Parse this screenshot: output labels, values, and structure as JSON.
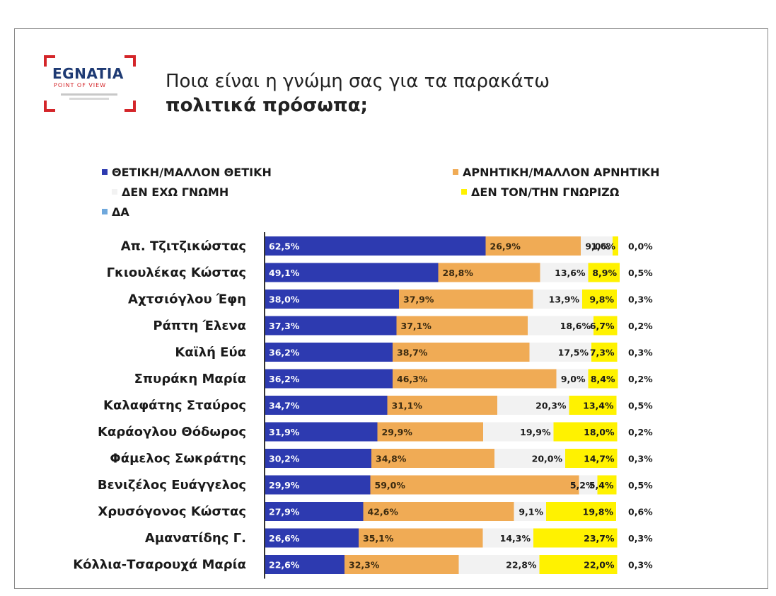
{
  "title_line1": "Ποια είναι η γνώμη σας για τα παρακάτω",
  "title_line2": "πολιτικά πρόσωπα;",
  "logo": {
    "word": "EGNATIA",
    "sub": "POINT OF VIEW"
  },
  "colors": {
    "positive": "#2d3ab0",
    "negative": "#f0ab55",
    "no_opinion": "#f2f2f2",
    "dont_know": "#fff200",
    "na": "#6fa8dc"
  },
  "chart_data": {
    "type": "bar",
    "orientation": "horizontal-stacked",
    "categories": [
      "Απ. Τζιτζικώστας",
      "Γκιουλέκας Κώστας",
      "Αχτσιόγλου Έφη",
      "Ράπτη Έλενα",
      "Καϊλή Εύα",
      "Σπυράκη Μαρία",
      "Καλαφάτης Σταύρος",
      "Καράογλου Θόδωρος",
      "Φάμελος Σωκράτης",
      "Βενιζέλος Ευάγγελος",
      "Χρυσόγονος Κώστας",
      "Αμανατίδης Γ.",
      "Κόλλια-Τσαρουχά Μαρία"
    ],
    "series": [
      {
        "name": "ΘΕΤΙΚΗ/ΜΑΛΛΟΝ ΘΕΤΙΚΗ",
        "labels": [
          "62,5%",
          "49,1%",
          "38,0%",
          "37,3%",
          "36,2%",
          "36,2%",
          "34,7%",
          "31,9%",
          "30,2%",
          "29,9%",
          "27,9%",
          "26,6%",
          "22,6%"
        ],
        "values": [
          62.5,
          49.1,
          38.0,
          37.3,
          36.2,
          36.2,
          34.7,
          31.9,
          30.2,
          29.9,
          27.9,
          26.6,
          22.6
        ]
      },
      {
        "name": "ΑΡΝΗΤΙΚΗ/ΜΑΛΛΟΝ ΑΡΝΗΤΙΚΗ",
        "labels": [
          "26,9%",
          "28,8%",
          "37,9%",
          "37,1%",
          "38,7%",
          "46,3%",
          "31,1%",
          "29,9%",
          "34,8%",
          "59,0%",
          "42,6%",
          "35,1%",
          "32,3%"
        ],
        "values": [
          26.9,
          28.8,
          37.9,
          37.1,
          38.7,
          46.3,
          31.1,
          29.9,
          34.8,
          59.0,
          42.6,
          35.1,
          32.3
        ]
      },
      {
        "name": "ΔΕΝ ΕΧΩ ΓΝΩΜΗ",
        "labels": [
          "9,0%",
          "13,6%",
          "13,9%",
          "18,6%",
          "17,5%",
          "9,0%",
          "20,3%",
          "19,9%",
          "20,0%",
          "5,2%",
          "9,1%",
          "14,3%",
          "22,8%"
        ],
        "values": [
          9.0,
          13.6,
          13.9,
          18.6,
          17.5,
          9.0,
          20.3,
          19.9,
          20.0,
          5.2,
          9.1,
          14.3,
          22.8
        ]
      },
      {
        "name": "ΔΕΝ ΤΟΝ/ΤΗΝ ΓΝΩΡΙΖΩ",
        "labels": [
          "1,6%",
          "8,9%",
          "9,8%",
          "6,7%",
          "7,3%",
          "8,4%",
          "13,4%",
          "18,0%",
          "14,7%",
          "5,4%",
          "19,8%",
          "23,7%",
          "22,0%"
        ],
        "values": [
          1.6,
          8.9,
          9.8,
          6.7,
          7.3,
          8.4,
          13.4,
          18.0,
          14.7,
          5.4,
          19.8,
          23.7,
          22.0
        ]
      },
      {
        "name": "ΔΑ",
        "labels": [
          "0,0%",
          "0,5%",
          "0,3%",
          "0,2%",
          "0,3%",
          "0,2%",
          "0,5%",
          "0,2%",
          "0,3%",
          "0,5%",
          "0,6%",
          "0,3%",
          "0,3%"
        ],
        "values": [
          0.0,
          0.5,
          0.3,
          0.2,
          0.3,
          0.2,
          0.5,
          0.2,
          0.3,
          0.5,
          0.6,
          0.3,
          0.3
        ]
      }
    ],
    "legend_position": "top",
    "grid": false
  }
}
